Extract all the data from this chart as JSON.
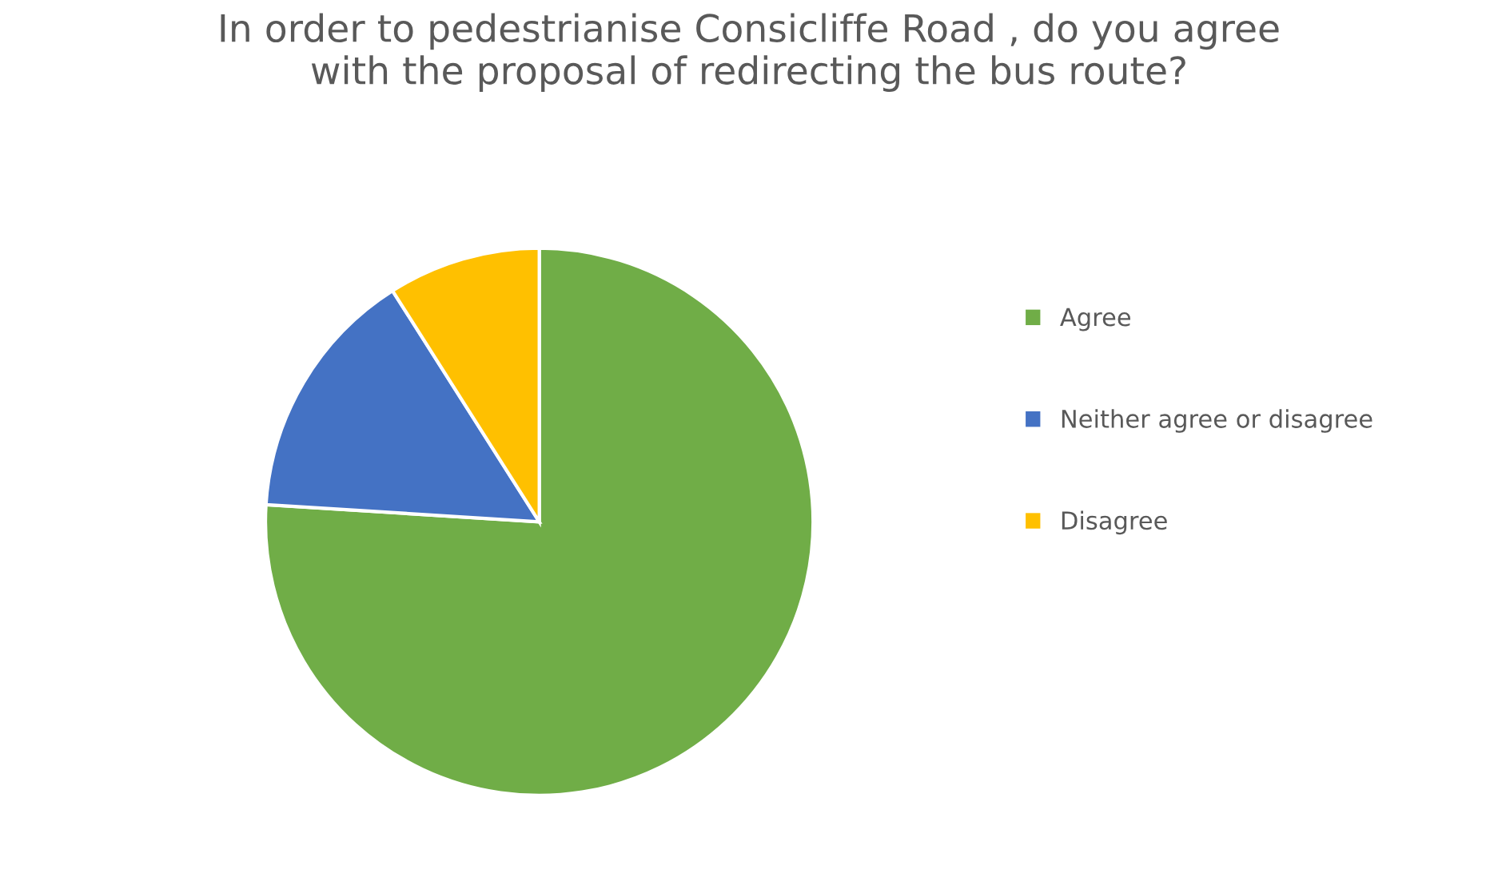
{
  "chart_data": {
    "type": "pie",
    "title": "In order to pedestrianise Consicliffe Road , do you agree\nwith the proposal of redirecting the bus route?",
    "categories": [
      "Agree",
      "Neither agree or disagree",
      "Disagree"
    ],
    "values": [
      76,
      15,
      9
    ],
    "colors": [
      "#70ad47",
      "#4472c4",
      "#ffc000"
    ],
    "legend": "right"
  }
}
